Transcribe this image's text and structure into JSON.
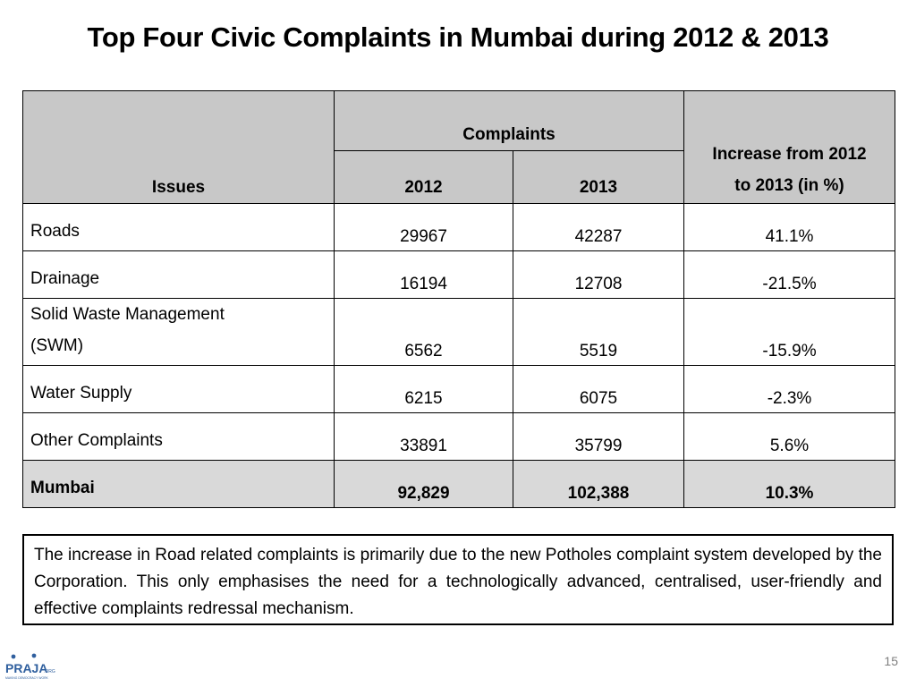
{
  "title": "Top Four Civic Complaints in Mumbai during 2012 & 2013",
  "table": {
    "header": {
      "issues": "Issues",
      "complaints": "Complaints",
      "year1": "2012",
      "year2": "2013",
      "increase_line1": "Increase from 2012",
      "increase_line2": "to 2013 (in %)"
    },
    "rows": [
      {
        "issue": "Roads",
        "v2012": "29967",
        "v2013": "42287",
        "increase": "41.1%"
      },
      {
        "issue": "Drainage",
        "v2012": "16194",
        "v2013": "12708",
        "increase": "-21.5%"
      },
      {
        "issue_line1": "Solid Waste Management",
        "issue_line2": "(SWM)",
        "v2012": "6562",
        "v2013": "5519",
        "increase": "-15.9%"
      },
      {
        "issue": "Water Supply",
        "v2012": "6215",
        "v2013": "6075",
        "increase": "-2.3%"
      },
      {
        "issue": "Other Complaints",
        "v2012": "33891",
        "v2013": "35799",
        "increase": "5.6%"
      }
    ],
    "total": {
      "issue": "Mumbai",
      "v2012": "92,829",
      "v2013": "102,388",
      "increase": "10.3%"
    }
  },
  "note": "The increase in Road related complaints is primarily due to the new Potholes complaint system developed by the Corporation. This only emphasises the need for a technologically advanced, centralised, user-friendly and effective complaints redressal mechanism.",
  "logo": {
    "name": "PRAJA",
    "suffix": ".ORG",
    "tagline": "MAKING DEMOCRACY WORK"
  },
  "page_number": "15",
  "colors": {
    "header_bg": "#c8c8c8",
    "total_bg": "#d9d9d9",
    "logo_blue": "#2f5f9e"
  }
}
